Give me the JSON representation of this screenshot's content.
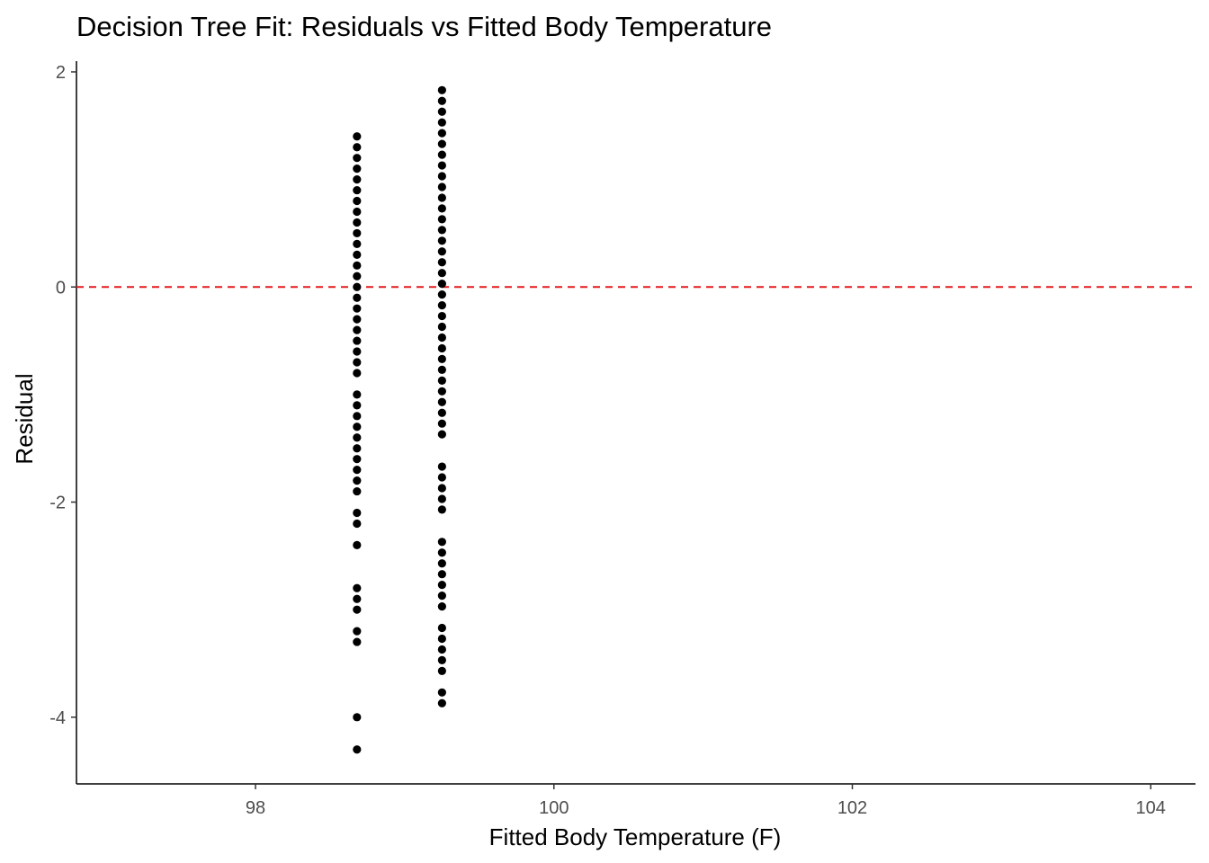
{
  "chart_data": {
    "type": "scatter",
    "title": "Decision Tree Fit: Residuals vs Fitted Body Temperature",
    "xlabel": "Fitted Body Temperature (F)",
    "ylabel": "Residual",
    "xlim": [
      96.8,
      104.3
    ],
    "ylim": [
      -4.62,
      2.1
    ],
    "x_ticks": [
      98,
      100,
      102,
      104
    ],
    "x_tick_labels": [
      "98",
      "100",
      "102",
      "104"
    ],
    "y_ticks": [
      -4,
      -2,
      0,
      2
    ],
    "y_tick_labels": [
      "-4",
      "-2",
      "0",
      "2"
    ],
    "grid": false,
    "reference_line": {
      "y": 0,
      "style": "dashed",
      "color": "#e41a1c"
    },
    "point_color": "#000000",
    "series": [
      {
        "x": 98.68,
        "residuals": [
          1.4,
          1.3,
          1.2,
          1.1,
          1.0,
          0.9,
          0.8,
          0.7,
          0.6,
          0.5,
          0.4,
          0.3,
          0.2,
          0.1,
          0.0,
          -0.1,
          -0.2,
          -0.3,
          -0.4,
          -0.5,
          -0.6,
          -0.7,
          -0.8,
          -1.0,
          -1.1,
          -1.2,
          -1.3,
          -1.4,
          -1.5,
          -1.6,
          -1.7,
          -1.8,
          -1.9,
          -2.1,
          -2.2,
          -2.4,
          -2.8,
          -2.9,
          -3.0,
          -3.2,
          -3.3,
          -4.0,
          -4.3
        ]
      },
      {
        "x": 99.25,
        "residuals": [
          1.83,
          1.73,
          1.63,
          1.53,
          1.43,
          1.33,
          1.23,
          1.13,
          1.03,
          0.93,
          0.83,
          0.73,
          0.63,
          0.53,
          0.43,
          0.33,
          0.23,
          0.13,
          0.03,
          -0.07,
          -0.17,
          -0.27,
          -0.37,
          -0.47,
          -0.57,
          -0.67,
          -0.77,
          -0.87,
          -0.97,
          -1.07,
          -1.17,
          -1.27,
          -1.37,
          -1.67,
          -1.77,
          -1.87,
          -1.97,
          -2.07,
          -2.37,
          -2.47,
          -2.57,
          -2.67,
          -2.77,
          -2.87,
          -2.97,
          -3.17,
          -3.27,
          -3.37,
          -3.47,
          -3.57,
          -3.77,
          -3.87
        ]
      }
    ]
  }
}
